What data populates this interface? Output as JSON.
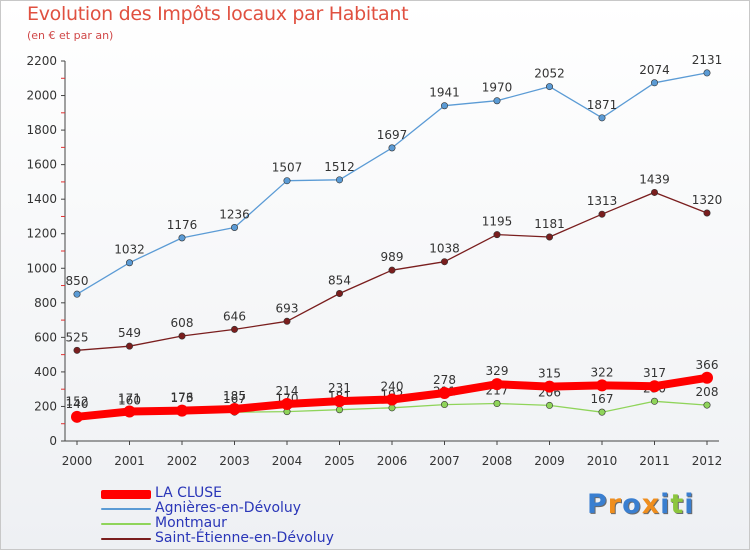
{
  "title": "Evolution des Impôts locaux par Habitant",
  "subtitle": "(en € et par an)",
  "brand": {
    "text": "Proxiti",
    "colors": [
      "#3a7fd0",
      "#ef8e1e",
      "#3a7fd0",
      "#ef8e1e",
      "#3a7fd0",
      "#8cc63e",
      "#3a7fd0"
    ]
  },
  "chart_data": {
    "type": "line",
    "x": [
      "2000",
      "2001",
      "2002",
      "2003",
      "2004",
      "2005",
      "2006",
      "2007",
      "2008",
      "2009",
      "2010",
      "2011",
      "2012"
    ],
    "ylim": [
      0,
      2200
    ],
    "yticks": [
      0,
      200,
      400,
      600,
      800,
      1000,
      1200,
      1400,
      1600,
      1800,
      2000,
      2200
    ],
    "grid": false,
    "legend_position": "bottom-left",
    "series": [
      {
        "name": "LA CLUSE",
        "color": "#ff0000",
        "values": [
          140,
          171,
          176,
          185,
          214,
          231,
          240,
          278,
          329,
          315,
          322,
          317,
          366
        ]
      },
      {
        "name": "Agnières-en-Dévoluy",
        "color": "#5b9bd5",
        "values": [
          850,
          1032,
          1176,
          1236,
          1507,
          1512,
          1697,
          1941,
          1970,
          2052,
          1871,
          2074,
          2131
        ]
      },
      {
        "name": "Montmaur",
        "color": "#8fd45a",
        "values": [
          152,
          160,
          173,
          167,
          170,
          181,
          192,
          211,
          217,
          206,
          167,
          230,
          208
        ]
      },
      {
        "name": "Saint-Étienne-en-Dévoluy",
        "color": "#7a1e1e",
        "values": [
          525,
          549,
          608,
          646,
          693,
          854,
          989,
          1038,
          1195,
          1181,
          1313,
          1439,
          1320
        ]
      }
    ]
  }
}
